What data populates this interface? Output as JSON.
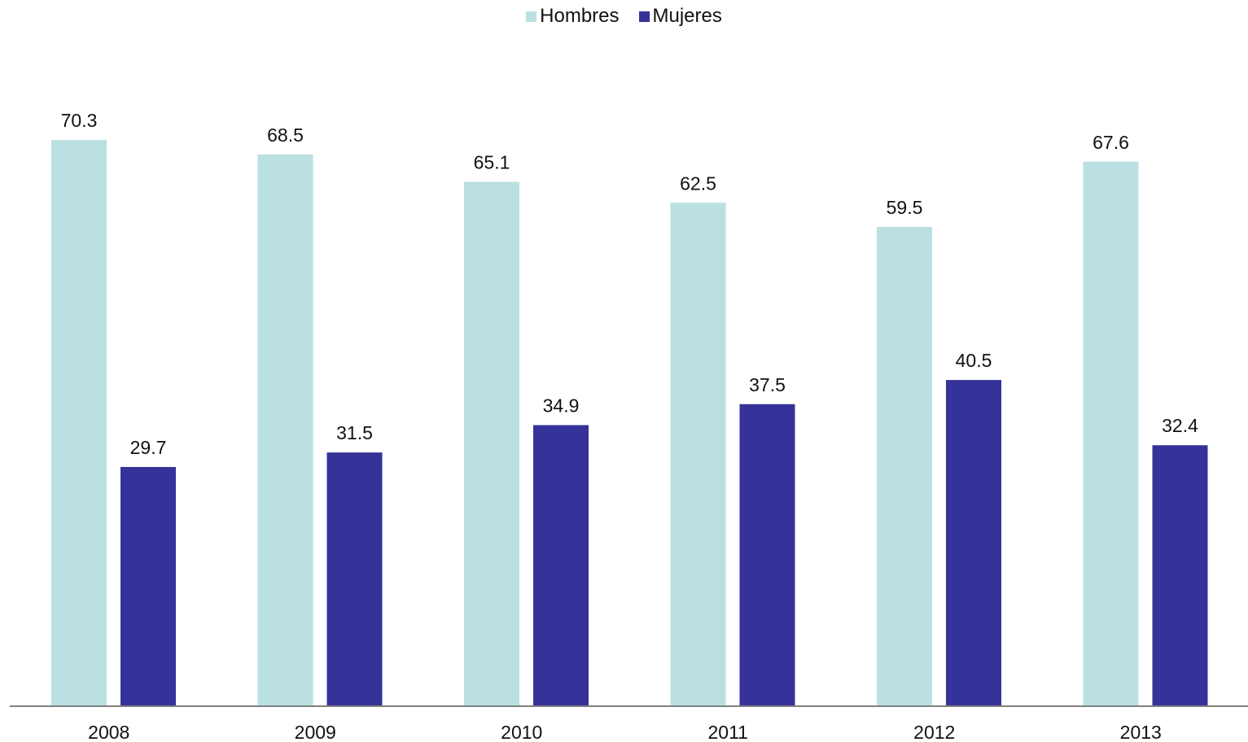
{
  "chart_data": {
    "type": "bar",
    "categories": [
      "2008",
      "2009",
      "2010",
      "2011",
      "2012",
      "2013"
    ],
    "series": [
      {
        "name": "Hombres",
        "values": [
          70.3,
          68.5,
          65.1,
          62.5,
          59.5,
          67.6
        ],
        "color": "#bae0e2"
      },
      {
        "name": "Mujeres",
        "values": [
          29.7,
          31.5,
          34.9,
          37.5,
          40.5,
          32.4
        ],
        "color": "#353399"
      }
    ],
    "ylim": [
      0,
      80
    ],
    "grid": false,
    "legend_position": "top-center",
    "axis_color": "#808080"
  }
}
